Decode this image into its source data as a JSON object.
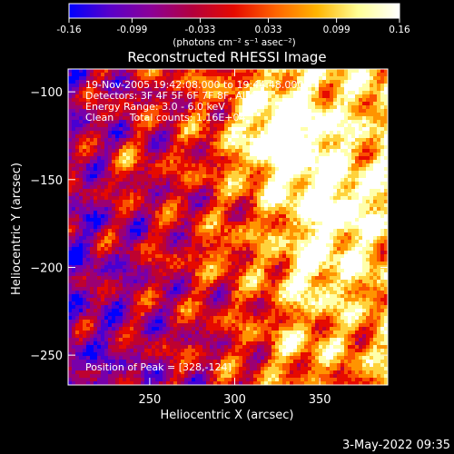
{
  "chart_data": {
    "type": "heatmap",
    "title": "Reconstructed RHESSI Image",
    "xlabel": "Heliocentric X (arcsec)",
    "ylabel": "Heliocentric Y (arcsec)",
    "xlim": [
      202,
      390
    ],
    "ylim": [
      -267,
      -87
    ],
    "x_ticks": [
      250,
      300,
      350
    ],
    "y_ticks": [
      -100,
      -150,
      -200,
      -250
    ],
    "colorbar": {
      "range": [
        -0.16,
        0.16
      ],
      "tick_values": [
        -0.16,
        -0.099,
        -0.033,
        0.033,
        0.099,
        0.16
      ],
      "tick_labels": [
        "-0.16",
        "-0.099",
        "-0.033",
        "0.033",
        "0.099",
        "0.16"
      ],
      "unit_label": "(photons cm⁻² s⁻¹ asec⁻²)",
      "colors": [
        "#0000ff",
        "#5a00c8",
        "#8c0096",
        "#b4003c",
        "#e60a00",
        "#ff6400",
        "#ffb400",
        "#ffff96",
        "#ffffff"
      ]
    },
    "annotations": [
      "19-Nov-2005 19:42:08.000 to 19:44:48.000",
      "Detectors: 3F 4F 5F 6F 7F 8F, All 0",
      "Energy Range: 3.0 - 6.0 keV",
      "Clean     Total counts: 1.16E+04"
    ],
    "peak_label": "Position of Peak = [328,-124]",
    "peak": {
      "x": 328,
      "y": -124
    },
    "grid": false
  },
  "timestamp": "3-May-2022 09:35"
}
